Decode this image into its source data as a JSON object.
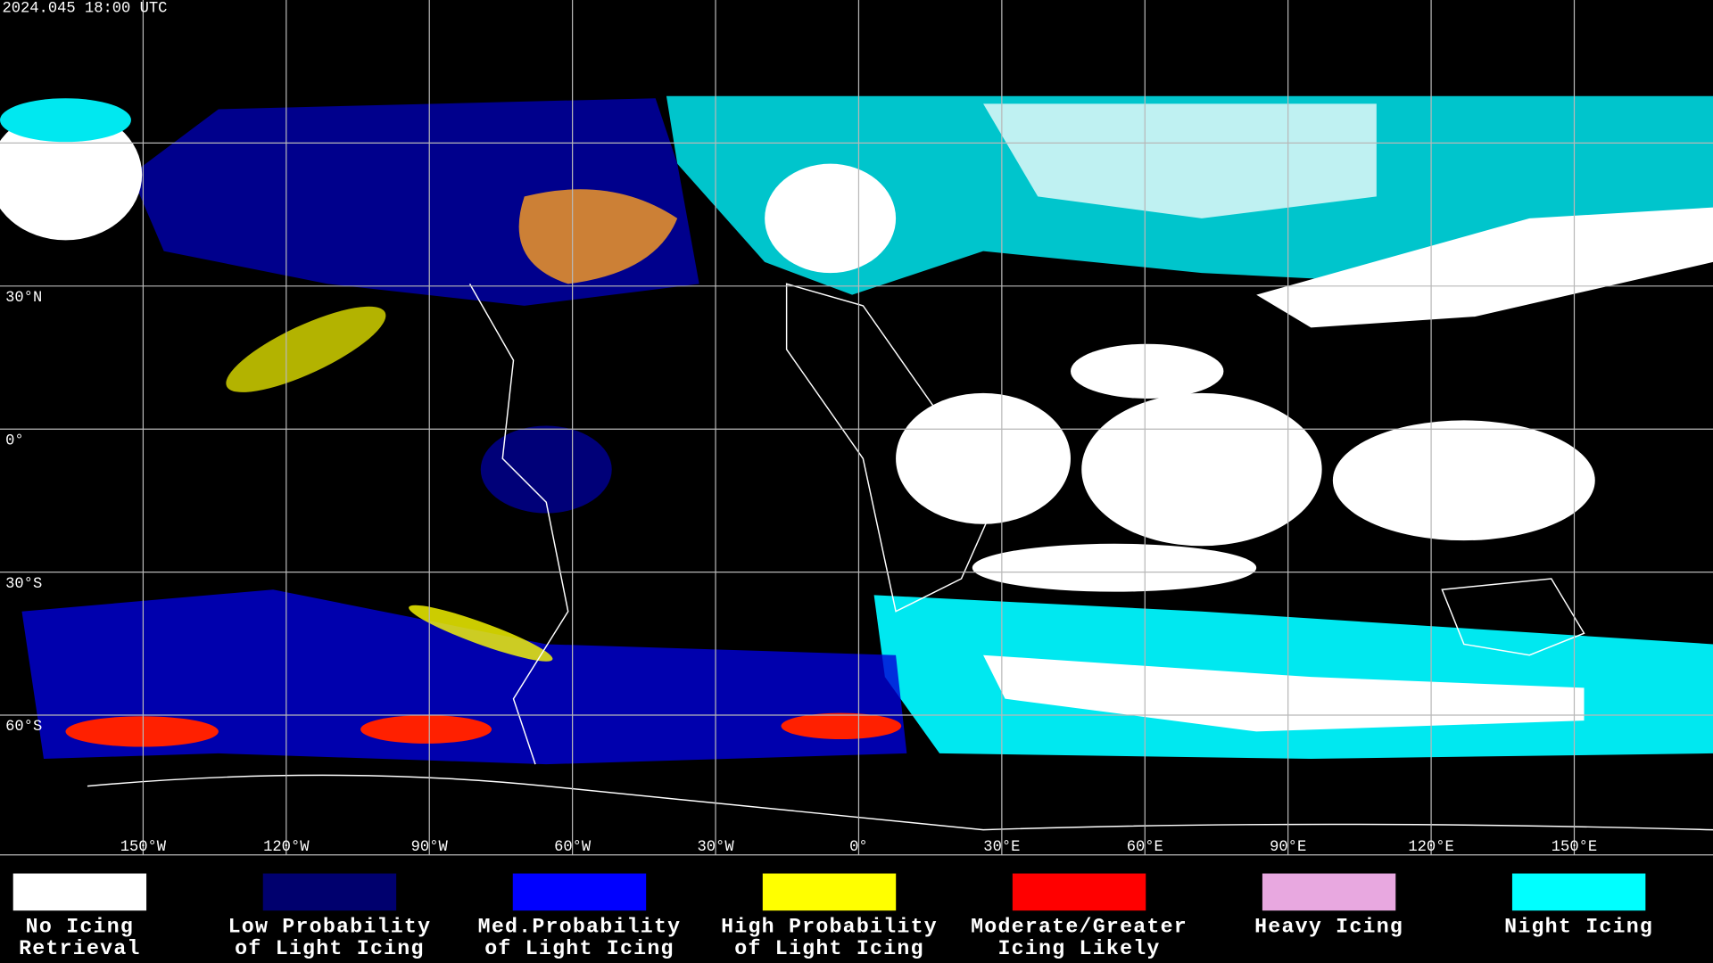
{
  "header": {
    "timestamp": "2024.045 18:00 UTC"
  },
  "map": {
    "longitude_labels": [
      "150°W",
      "120°W",
      "90°W",
      "60°W",
      "30°W",
      "0°",
      "30°E",
      "60°E",
      "90°E",
      "120°E",
      "150°E"
    ],
    "latitude_labels": [
      "30°N",
      "0°",
      "30°S",
      "60°S"
    ]
  },
  "legend": [
    {
      "label": [
        "No Icing",
        "Retrieval"
      ],
      "color": "#ffffff"
    },
    {
      "label": [
        "Low Probability",
        "of Light Icing"
      ],
      "color": "#00006e"
    },
    {
      "label": [
        "Med.Probability",
        "of Light Icing"
      ],
      "color": "#0000ff"
    },
    {
      "label": [
        "High Probability",
        "of Light Icing"
      ],
      "color": "#ffff00"
    },
    {
      "label": [
        "Moderate/Greater",
        "Icing Likely"
      ],
      "color": "#ff0000"
    },
    {
      "label": [
        "Heavy Icing"
      ],
      "color": "#e8a8e0"
    },
    {
      "label": [
        "Night Icing"
      ],
      "color": "#00ffff"
    }
  ]
}
